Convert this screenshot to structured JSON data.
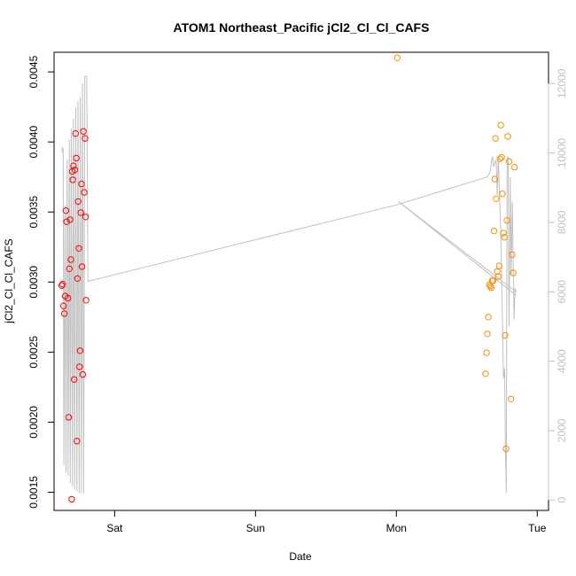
{
  "chart_data": {
    "type": "scatter",
    "title": "ATOM1 Northeast_Pacific jCl2_Cl_Cl_CAFS",
    "xlabel": "Date",
    "ylabel": "jCl2_Cl_Cl_CAFS",
    "x_unit": "days from start of Saturday",
    "xlim": [
      -0.43,
      3.08
    ],
    "ylim": [
      0.00137,
      0.00464
    ],
    "x_ticks": [
      {
        "value": 0,
        "label": "Sat"
      },
      {
        "value": 1,
        "label": "Sun"
      },
      {
        "value": 2,
        "label": "Mon"
      },
      {
        "value": 3,
        "label": "Tue"
      }
    ],
    "y_ticks": [
      {
        "value": 0.0015,
        "label": "0.0015"
      },
      {
        "value": 0.002,
        "label": "0.0020"
      },
      {
        "value": 0.0025,
        "label": "0.0025"
      },
      {
        "value": 0.003,
        "label": "0.0030"
      },
      {
        "value": 0.0035,
        "label": "0.0035"
      },
      {
        "value": 0.004,
        "label": "0.0040"
      },
      {
        "value": 0.0045,
        "label": "0.0045"
      }
    ],
    "y2lim": [
      -300,
      12900
    ],
    "y2_ticks": [
      {
        "value": 0,
        "label": "0"
      },
      {
        "value": 2000,
        "label": "2000"
      },
      {
        "value": 4000,
        "label": "4000"
      },
      {
        "value": 6000,
        "label": "6000"
      },
      {
        "value": 8000,
        "label": "8000"
      },
      {
        "value": 10000,
        "label": "10000"
      },
      {
        "value": 12000,
        "label": "12000"
      }
    ],
    "grid": false,
    "series": [
      {
        "color": "#ff0000",
        "marker": "open-circle",
        "points": [
          [
            -0.375,
            0.002975
          ],
          [
            -0.369,
            0.002985
          ],
          [
            -0.363,
            0.00283
          ],
          [
            -0.357,
            0.002775
          ],
          [
            -0.351,
            0.0029
          ],
          [
            -0.346,
            0.00351
          ],
          [
            -0.341,
            0.00343
          ],
          [
            -0.331,
            0.002885
          ],
          [
            -0.326,
            0.002035
          ],
          [
            -0.321,
            0.003095
          ],
          [
            -0.316,
            0.003445
          ],
          [
            -0.31,
            0.00316
          ],
          [
            -0.305,
            0.00145
          ],
          [
            -0.301,
            0.00379
          ],
          [
            -0.297,
            0.00373
          ],
          [
            -0.292,
            0.00383
          ],
          [
            -0.287,
            0.002305
          ],
          [
            -0.282,
            0.0038
          ],
          [
            -0.277,
            0.00406
          ],
          [
            -0.272,
            0.003885
          ],
          [
            -0.268,
            0.001865
          ],
          [
            -0.264,
            0.003025
          ],
          [
            -0.259,
            0.003575
          ],
          [
            -0.254,
            0.00324
          ],
          [
            -0.249,
            0.002395
          ],
          [
            -0.245,
            0.00251
          ],
          [
            -0.24,
            0.003495
          ],
          [
            -0.235,
            0.0037
          ],
          [
            -0.231,
            0.00311
          ],
          [
            -0.226,
            0.00234
          ],
          [
            -0.222,
            0.004075
          ],
          [
            -0.216,
            0.00364
          ],
          [
            -0.21,
            0.004025
          ],
          [
            -0.206,
            0.003465
          ],
          [
            -0.203,
            0.00287
          ]
        ]
      },
      {
        "color": "#ff8c00",
        "marker": "open-circle",
        "points": [
          [
            2.006,
            0.0046
          ],
          [
            2.633,
            0.002345
          ],
          [
            2.64,
            0.002495
          ],
          [
            2.646,
            0.00263
          ],
          [
            2.653,
            0.00275
          ],
          [
            2.66,
            0.00298
          ],
          [
            2.667,
            0.00297
          ],
          [
            2.673,
            0.00296
          ],
          [
            2.68,
            0.00301
          ],
          [
            2.687,
            0.00301
          ],
          [
            2.693,
            0.003365
          ],
          [
            2.698,
            0.003735
          ],
          [
            2.703,
            0.004025
          ],
          [
            2.709,
            0.003595
          ],
          [
            2.716,
            0.003075
          ],
          [
            2.723,
            0.00304
          ],
          [
            2.73,
            0.003115
          ],
          [
            2.736,
            0.00388
          ],
          [
            2.741,
            0.00412
          ],
          [
            2.747,
            0.00389
          ],
          [
            2.753,
            0.00363
          ],
          [
            2.76,
            0.00335
          ],
          [
            2.767,
            0.00332
          ],
          [
            2.772,
            0.00262
          ],
          [
            2.778,
            0.00181
          ],
          [
            2.785,
            0.00344
          ],
          [
            2.791,
            0.00404
          ],
          [
            2.8,
            0.00386
          ],
          [
            2.814,
            0.002165
          ],
          [
            2.822,
            0.003195
          ],
          [
            2.829,
            0.003065
          ],
          [
            2.838,
            0.00382
          ]
        ]
      }
    ],
    "secondary_line": {
      "color": "#c0c0c0",
      "points": [
        [
          -0.375,
          10000
        ],
        [
          -0.37,
          10150
        ],
        [
          -0.365,
          10100
        ],
        [
          -0.36,
          1000
        ],
        [
          -0.352,
          8500
        ],
        [
          -0.345,
          800
        ],
        [
          -0.337,
          9800
        ],
        [
          -0.33,
          700
        ],
        [
          -0.322,
          10400
        ],
        [
          -0.315,
          500
        ],
        [
          -0.308,
          10700
        ],
        [
          -0.3,
          400
        ],
        [
          -0.292,
          11000
        ],
        [
          -0.284,
          300
        ],
        [
          -0.276,
          11300
        ],
        [
          -0.268,
          250
        ],
        [
          -0.26,
          11500
        ],
        [
          -0.252,
          200
        ],
        [
          -0.244,
          11600
        ],
        [
          -0.236,
          200
        ],
        [
          -0.228,
          12000
        ],
        [
          -0.22,
          200
        ],
        [
          -0.212,
          12200
        ],
        [
          -0.204,
          12200
        ],
        [
          -0.198,
          12200
        ],
        [
          -0.19,
          6300
        ],
        [
          1.0,
          7500
        ],
        [
          2.0,
          8500
        ],
        [
          2.64,
          9300
        ],
        [
          2.66,
          9400
        ],
        [
          2.668,
          9500
        ],
        [
          2.676,
          9800
        ],
        [
          2.684,
          9900
        ],
        [
          2.69,
          9600
        ],
        [
          2.698,
          9700
        ],
        [
          2.708,
          9800
        ],
        [
          2.716,
          8800
        ],
        [
          2.724,
          9900
        ],
        [
          2.73,
          9000
        ],
        [
          2.738,
          8200
        ],
        [
          2.745,
          7000
        ],
        [
          2.752,
          5300
        ],
        [
          2.76,
          3500
        ],
        [
          2.768,
          3800
        ],
        [
          2.774,
          1500
        ],
        [
          2.78,
          200
        ],
        [
          2.786,
          9800
        ],
        [
          2.793,
          9900
        ],
        [
          2.8,
          5000
        ],
        [
          2.808,
          9300
        ],
        [
          2.815,
          6500
        ],
        [
          2.823,
          8600
        ],
        [
          2.829,
          7000
        ],
        [
          2.835,
          5200
        ],
        [
          2.842,
          6100
        ],
        [
          2.85,
          6000
        ],
        [
          2.014,
          8600
        ],
        [
          2.85,
          5900
        ]
      ]
    }
  }
}
